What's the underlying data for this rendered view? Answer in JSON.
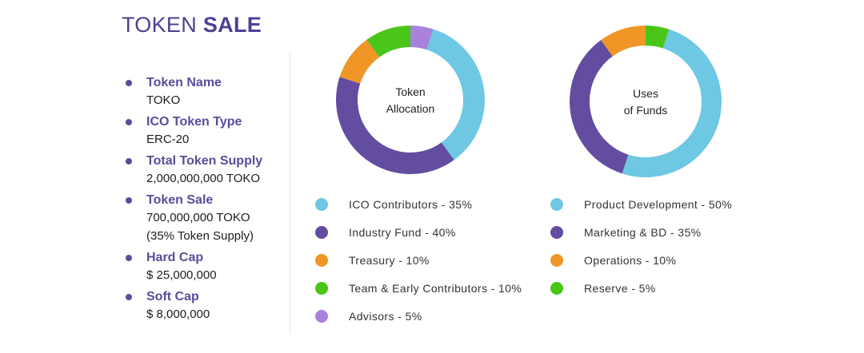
{
  "header": {
    "title_regular": "TOKEN",
    "title_bold": "SALE"
  },
  "info_list": [
    {
      "label": "Token Name",
      "values": [
        "TOKO"
      ]
    },
    {
      "label": "ICO Token Type",
      "values": [
        "ERC-20"
      ]
    },
    {
      "label": "Total Token Supply",
      "values": [
        "2,000,000,000 TOKO"
      ]
    },
    {
      "label": "Token Sale",
      "values": [
        "700,000,000 TOKO",
        "(35% Token Supply)"
      ]
    },
    {
      "label": "Hard Cap",
      "values": [
        "$ 25,000,000"
      ]
    },
    {
      "label": "Soft Cap",
      "values": [
        "$ 8,000,000"
      ]
    }
  ],
  "colors": {
    "ico": "#6ec7e3",
    "industry": "#624da0",
    "treasury": "#ef9626",
    "team": "#49c619",
    "advisors": "#a882dc"
  },
  "chart_data": [
    {
      "type": "pie",
      "center_label": [
        "Token",
        "Allocation"
      ],
      "slices": [
        {
          "name": "Advisors",
          "value": 5,
          "color": "#a882dc"
        },
        {
          "name": "ICO Contributors",
          "value": 35,
          "color": "#6ec7e3"
        },
        {
          "name": "Industry Fund",
          "value": 40,
          "color": "#624da0"
        },
        {
          "name": "Treasury",
          "value": 10,
          "color": "#ef9626"
        },
        {
          "name": "Team & Early Contributors",
          "value": 10,
          "color": "#49c619"
        }
      ],
      "legend": [
        {
          "text": "ICO Contributors - 35%",
          "color": "#6ec7e3"
        },
        {
          "text": "Industry Fund - 40%",
          "color": "#624da0"
        },
        {
          "text": "Treasury - 10%",
          "color": "#ef9626"
        },
        {
          "text": "Team & Early Contributors - 10%",
          "color": "#49c619"
        },
        {
          "text": "Advisors - 5%",
          "color": "#a882dc"
        }
      ]
    },
    {
      "type": "pie",
      "center_label": [
        "Uses",
        "of Funds"
      ],
      "slices": [
        {
          "name": "Reserve",
          "value": 5,
          "color": "#49c619"
        },
        {
          "name": "Product Development",
          "value": 50,
          "color": "#6ec7e3"
        },
        {
          "name": "Marketing & BD",
          "value": 35,
          "color": "#624da0"
        },
        {
          "name": "Operations",
          "value": 10,
          "color": "#ef9626"
        }
      ],
      "legend": [
        {
          "text": "Product Development - 50%",
          "color": "#6ec7e3"
        },
        {
          "text": "Marketing & BD - 35%",
          "color": "#624da0"
        },
        {
          "text": "Operations - 10%",
          "color": "#ef9626"
        },
        {
          "text": "Reserve - 5%",
          "color": "#49c619"
        }
      ]
    }
  ]
}
